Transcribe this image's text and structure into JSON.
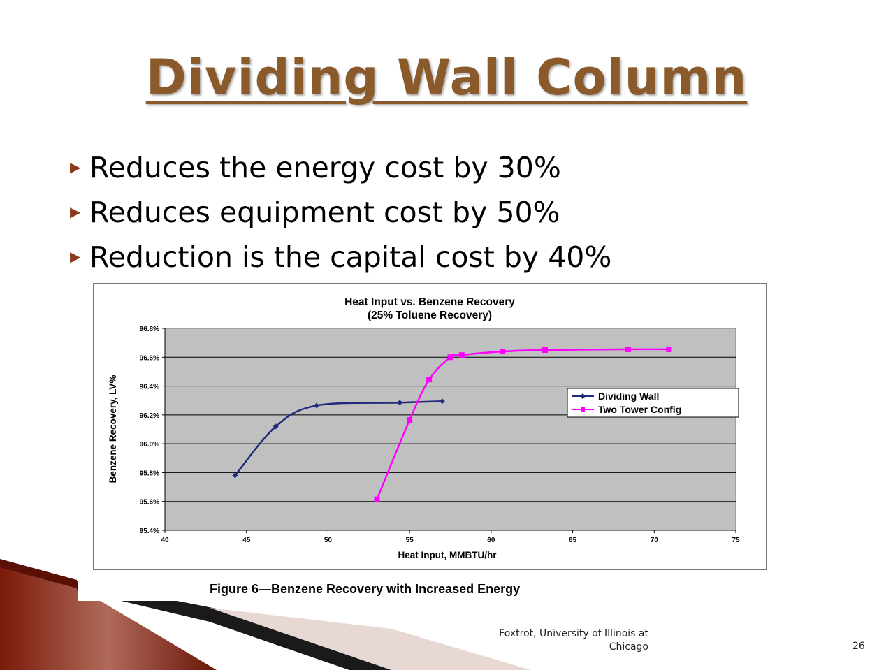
{
  "slide": {
    "title": "Dividing Wall Column",
    "bullets": [
      "Reduces the energy cost by 30%",
      "Reduces equipment cost by 50%",
      "Reduction is the capital cost by 40%"
    ],
    "caption": "Figure 6—Benzene Recovery with Increased Energy",
    "footer_line1": "Foxtrot, University of Illinois at",
    "footer_line2": "Chicago",
    "page_number": "26",
    "bullet_icon": "triangle-right-icon"
  },
  "chart_data": {
    "type": "line",
    "title": "Heat Input vs. Benzene Recovery",
    "subtitle": "(25% Toluene Recovery)",
    "xlabel": "Heat Input, MMBTU/hr",
    "ylabel": "Benzene Recovery, LV%",
    "xlim": [
      40,
      75
    ],
    "ylim": [
      95.4,
      96.8
    ],
    "x_ticks": [
      "40",
      "45",
      "50",
      "55",
      "60",
      "65",
      "70",
      "75"
    ],
    "y_ticks": [
      "95.4%",
      "95.6%",
      "95.8%",
      "96.0%",
      "96.2%",
      "96.4%",
      "96.6%",
      "96.8%"
    ],
    "grid": "horizontal",
    "plot_background": "#c0c0c0",
    "legend_position": "right",
    "series": [
      {
        "name": "Dividing Wall",
        "color": "#1f2a7a",
        "marker": "diamond",
        "x": [
          44.3,
          46.8,
          49.3,
          54.4,
          57.0
        ],
        "y": [
          95.78,
          96.12,
          96.265,
          96.285,
          96.295
        ]
      },
      {
        "name": "Two Tower Config",
        "color": "#ff00ff",
        "marker": "square",
        "x": [
          53.0,
          55.0,
          56.2,
          57.5,
          58.2,
          60.7,
          63.3,
          68.4,
          70.9
        ],
        "y": [
          95.615,
          96.165,
          96.445,
          96.6,
          96.615,
          96.64,
          96.65,
          96.655,
          96.655
        ]
      }
    ]
  }
}
